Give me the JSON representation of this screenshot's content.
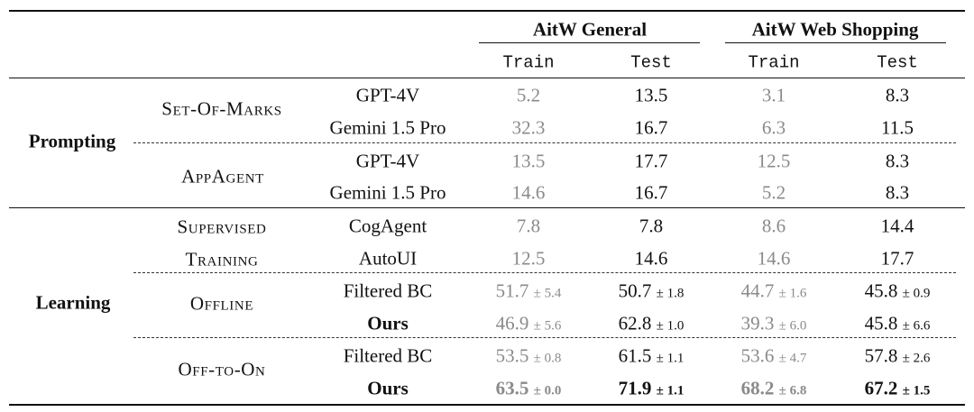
{
  "headers": {
    "general": "AitW General",
    "web_shopping": "AitW Web Shopping",
    "sub": [
      "Train",
      "Test",
      "Train",
      "Test"
    ]
  },
  "groups": {
    "prompting": "Prompting",
    "learning": "Learning"
  },
  "methods": {
    "set_of_marks": {
      "a1": "S",
      "b1": "ET",
      "a2": "-O",
      "b2": "F",
      "a3": "-M",
      "b3": "ARKS"
    },
    "appagent": {
      "a1": "A",
      "b1": "PP",
      "a2": "A",
      "b2": "GENT"
    },
    "supervised": {
      "a1": "S",
      "b1": "UPERVISED"
    },
    "training": {
      "a1": "T",
      "b1": "RAINING"
    },
    "offline": {
      "a1": "O",
      "b1": "FFLINE"
    },
    "off_to_on": {
      "a1": "O",
      "b1": "FF",
      "a2": "-",
      "b2": "TO",
      "a3": "-O",
      "b3": "N"
    }
  },
  "rows": [
    {
      "model": "GPT-4V",
      "v": [
        "5.2",
        "13.5",
        "3.1",
        "8.3"
      ]
    },
    {
      "model": "Gemini 1.5 Pro",
      "v": [
        "32.3",
        "16.7",
        "6.3",
        "11.5"
      ]
    },
    {
      "model": "GPT-4V",
      "v": [
        "13.5",
        "17.7",
        "12.5",
        "8.3"
      ]
    },
    {
      "model": "Gemini 1.5 Pro",
      "v": [
        "14.6",
        "16.7",
        "5.2",
        "8.3"
      ]
    },
    {
      "model": "CogAgent",
      "v": [
        "7.8",
        "7.8",
        "8.6",
        "14.4"
      ]
    },
    {
      "model": "AutoUI",
      "v": [
        "12.5",
        "14.6",
        "14.6",
        "17.7"
      ]
    },
    {
      "model": "Filtered BC",
      "v": [
        "51.7",
        "50.7",
        "44.7",
        "45.8"
      ],
      "pm": [
        "± 5.4",
        "± 1.8",
        "± 1.6",
        "± 0.9"
      ]
    },
    {
      "model": "Ours",
      "v": [
        "46.9",
        "62.8",
        "39.3",
        "45.8"
      ],
      "pm": [
        "± 5.6",
        "± 1.0",
        "± 6.0",
        "± 6.6"
      ]
    },
    {
      "model": "Filtered BC",
      "v": [
        "53.5",
        "61.5",
        "53.6",
        "57.8"
      ],
      "pm": [
        "± 0.8",
        "± 1.1",
        "± 4.7",
        "± 2.6"
      ]
    },
    {
      "model": "Ours",
      "v": [
        "63.5",
        "71.9",
        "68.2",
        "67.2"
      ],
      "pm": [
        "± 0.0",
        "± 1.1",
        "± 6.8",
        "± 1.5"
      ]
    }
  ]
}
